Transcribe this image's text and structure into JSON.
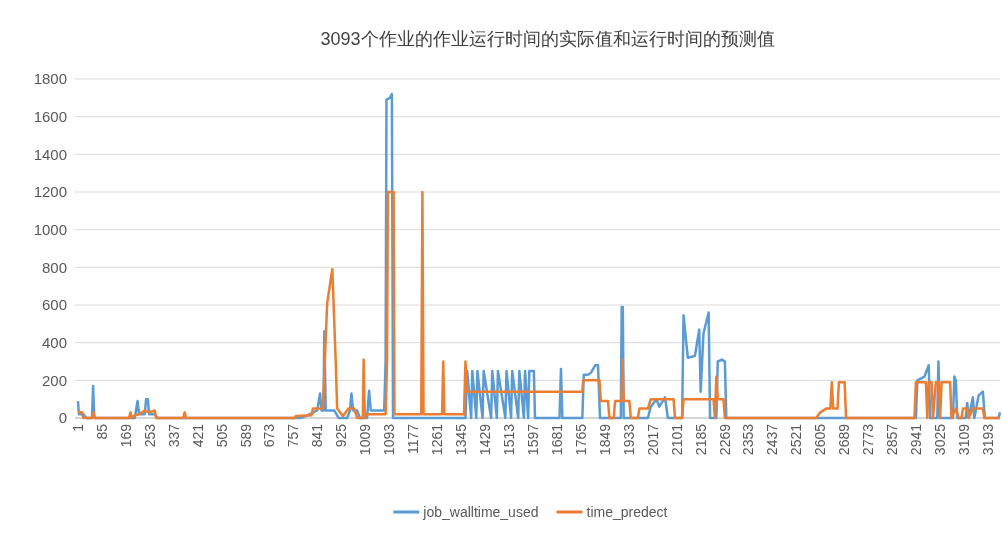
{
  "chart_data": {
    "type": "line",
    "title": "3093个作业的作业运行时间的实际值和运行时间的预测值",
    "xlim": [
      1,
      3235
    ],
    "xticks": [
      1,
      85,
      169,
      253,
      337,
      421,
      505,
      589,
      673,
      757,
      841,
      925,
      1009,
      1093,
      1177,
      1261,
      1345,
      1429,
      1513,
      1597,
      1681,
      1765,
      1849,
      1933,
      2017,
      2101,
      2185,
      2269,
      2353,
      2437,
      2521,
      2605,
      2689,
      2773,
      2857,
      2941,
      3025,
      3109,
      3193
    ],
    "ylim": [
      0,
      1800
    ],
    "yticks": [
      0,
      200,
      400,
      600,
      800,
      1000,
      1200,
      1400,
      1600,
      1800
    ],
    "grid": "y",
    "legend": "bottom",
    "line_style": "solid",
    "series": [
      {
        "name": "job_walltime_used",
        "color": "#5b9bd5",
        "x": [
          1,
          4,
          20,
          30,
          50,
          54,
          58,
          200,
          210,
          215,
          235,
          240,
          246,
          250,
          270,
          280,
          780,
          800,
          840,
          850,
          855,
          862,
          865,
          870,
          900,
          915,
          945,
          955,
          960,
          966,
          980,
          990,
          1015,
          1022,
          1028,
          1075,
          1080,
          1083,
          1095,
          1102,
          1106,
          1360,
          1366,
          1380,
          1384,
          1398,
          1402,
          1420,
          1424,
          1450,
          1454,
          1470,
          1474,
          1500,
          1504,
          1520,
          1524,
          1545,
          1549,
          1565,
          1569,
          1580,
          1584,
          1600,
          1604,
          1690,
          1695,
          1700,
          1770,
          1775,
          1790,
          1800,
          1815,
          1825,
          1832,
          1905,
          1908,
          1912,
          1915,
          2000,
          2010,
          2030,
          2040,
          2060,
          2070,
          2120,
          2125,
          2140,
          2165,
          2180,
          2185,
          2195,
          2213,
          2218,
          2240,
          2245,
          2260,
          2270,
          2275,
          2940,
          2945,
          2970,
          2985,
          2990,
          3015,
          3019,
          3024,
          3070,
          3075,
          3080,
          3085,
          3115,
          3120,
          3125,
          3140,
          3145,
          3160,
          3175,
          3182,
          3230,
          3235
        ],
        "values": [
          90,
          20,
          20,
          0,
          0,
          170,
          0,
          0,
          90,
          20,
          20,
          100,
          100,
          20,
          20,
          0,
          0,
          10,
          40,
          130,
          40,
          40,
          460,
          40,
          40,
          0,
          0,
          40,
          130,
          40,
          40,
          0,
          0,
          145,
          40,
          40,
          300,
          1690,
          1700,
          1720,
          0,
          0,
          250,
          0,
          250,
          0,
          250,
          0,
          250,
          0,
          250,
          0,
          250,
          0,
          250,
          0,
          250,
          0,
          250,
          0,
          250,
          0,
          250,
          250,
          0,
          0,
          260,
          0,
          0,
          230,
          230,
          240,
          280,
          280,
          0,
          0,
          590,
          590,
          0,
          0,
          60,
          100,
          60,
          110,
          0,
          0,
          545,
          320,
          330,
          470,
          140,
          450,
          560,
          0,
          0,
          300,
          310,
          300,
          0,
          0,
          200,
          220,
          280,
          0,
          0,
          300,
          0,
          0,
          220,
          200,
          0,
          0,
          80,
          0,
          110,
          0,
          120,
          140,
          0,
          0,
          30
        ]
      },
      {
        "name": "time_predect",
        "color": "#ed7d31",
        "x": [
          1,
          15,
          20,
          50,
          55,
          60,
          180,
          185,
          190,
          200,
          215,
          235,
          250,
          270,
          275,
          370,
          375,
          380,
          760,
          765,
          820,
          825,
          860,
          875,
          893,
          905,
          910,
          930,
          950,
          970,
          980,
          1000,
          1003,
          1007,
          1010,
          1080,
          1085,
          1088,
          1108,
          1111,
          1205,
          1209,
          1213,
          1278,
          1282,
          1286,
          1355,
          1360,
          1366,
          1770,
          1773,
          1830,
          1835,
          1860,
          1865,
          1880,
          1885,
          1908,
          1911,
          1915,
          1935,
          1940,
          1965,
          1970,
          2000,
          2010,
          2090,
          2095,
          2120,
          2125,
          2230,
          2235,
          2240,
          2245,
          2265,
          2270,
          2590,
          2605,
          2625,
          2640,
          2645,
          2650,
          2665,
          2670,
          2690,
          2695,
          2935,
          2940,
          2975,
          2980,
          2985,
          2995,
          3000,
          3010,
          3020,
          3025,
          3030,
          3060,
          3065,
          3080,
          3090,
          3100,
          3105,
          3120,
          3125,
          3140,
          3175,
          3180,
          3235
        ],
        "values": [
          30,
          30,
          0,
          0,
          30,
          0,
          0,
          30,
          0,
          15,
          20,
          40,
          30,
          40,
          0,
          0,
          30,
          0,
          0,
          10,
          15,
          50,
          50,
          610,
          790,
          300,
          50,
          10,
          50,
          50,
          0,
          0,
          310,
          0,
          20,
          20,
          300,
          1200,
          1200,
          20,
          20,
          1200,
          20,
          20,
          300,
          20,
          20,
          300,
          140,
          140,
          200,
          200,
          90,
          90,
          0,
          0,
          90,
          90,
          310,
          90,
          90,
          0,
          0,
          50,
          50,
          100,
          100,
          0,
          0,
          100,
          100,
          0,
          220,
          100,
          100,
          0,
          0,
          30,
          50,
          50,
          190,
          50,
          50,
          190,
          190,
          0,
          0,
          190,
          190,
          0,
          190,
          190,
          0,
          190,
          190,
          0,
          190,
          190,
          0,
          50,
          0,
          0,
          50,
          50,
          0,
          50,
          50,
          0,
          0
        ]
      }
    ]
  }
}
